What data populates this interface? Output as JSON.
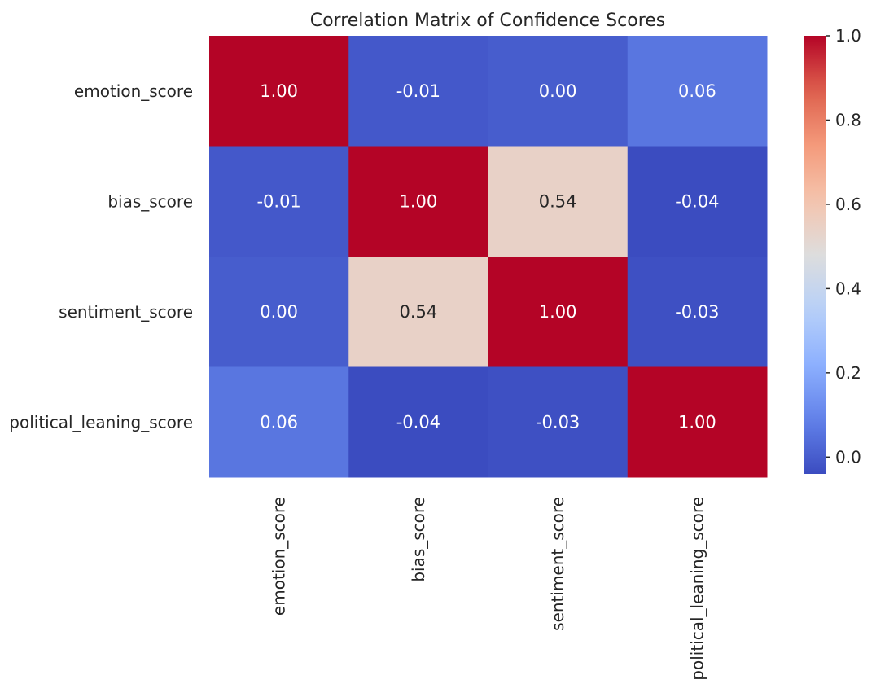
{
  "chart_data": {
    "type": "heatmap",
    "title": "Correlation Matrix of Confidence Scores",
    "row_labels": [
      "emotion_score",
      "bias_score",
      "sentiment_score",
      "political_leaning_score"
    ],
    "col_labels": [
      "emotion_score",
      "bias_score",
      "sentiment_score",
      "political_leaning_score"
    ],
    "values": [
      [
        1.0,
        -0.01,
        -0.0,
        0.06
      ],
      [
        -0.01,
        1.0,
        0.54,
        -0.04
      ],
      [
        -0.0,
        0.54,
        1.0,
        -0.03
      ],
      [
        0.06,
        -0.04,
        -0.03,
        1.0
      ]
    ],
    "value_format": "2 decimals",
    "colormap": "coolwarm",
    "color_range": [
      -0.04,
      1.0
    ],
    "colorbar": {
      "position": "right",
      "ticks": [
        0.0,
        0.2,
        0.4,
        0.6,
        0.8,
        1.0
      ],
      "tick_labels": [
        "0.0",
        "0.2",
        "0.4",
        "0.6",
        "0.8",
        "1.0"
      ]
    },
    "grid": false
  }
}
